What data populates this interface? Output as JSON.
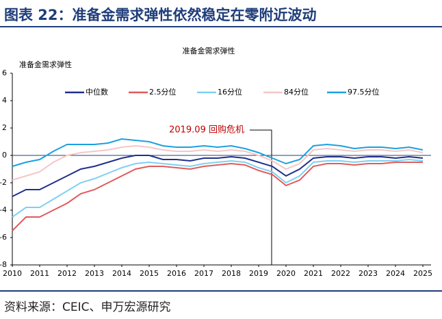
{
  "chart_data": {
    "type": "line",
    "header": "图表 22：准备金需求弹性依然稳定在零附近波动",
    "title": "准备金需求弹性",
    "ylabel": "准备金需求弹性",
    "annotation": "2019.09 回购危机",
    "source": "资料来源：CEIC、申万宏源研究",
    "x": [
      2010,
      2010.5,
      2011,
      2011.5,
      2012,
      2012.5,
      2013,
      2013.5,
      2014,
      2014.5,
      2015,
      2015.5,
      2016,
      2016.5,
      2017,
      2017.5,
      2018,
      2018.5,
      2019,
      2019.5,
      2020,
      2020.5,
      2021,
      2021.5,
      2022,
      2022.5,
      2023,
      2023.5,
      2024,
      2024.5,
      2025
    ],
    "xlim": [
      2010,
      2025.3
    ],
    "xticks": [
      2010,
      2011,
      2012,
      2013,
      2014,
      2015,
      2016,
      2017,
      2018,
      2019,
      2020,
      2021,
      2022,
      2023,
      2024,
      2025
    ],
    "ylim": [
      -8,
      6
    ],
    "yticks": [
      -8,
      -6,
      -4,
      -2,
      0,
      2,
      4,
      6
    ],
    "series": [
      {
        "name": "中位数",
        "color": "#1f2f8a",
        "values": [
          -3,
          -2.5,
          -2.5,
          -2,
          -1.5,
          -1,
          -0.8,
          -0.5,
          -0.2,
          0,
          0,
          -0.3,
          -0.3,
          -0.4,
          -0.2,
          -0.2,
          -0.1,
          -0.2,
          -0.5,
          -0.8,
          -1.5,
          -1,
          -0.2,
          -0.1,
          -0.1,
          -0.2,
          -0.1,
          -0.1,
          -0.2,
          -0.1,
          -0.2
        ]
      },
      {
        "name": "2.5分位",
        "color": "#e05a5a",
        "values": [
          -5.5,
          -4.5,
          -4.5,
          -4,
          -3.5,
          -2.8,
          -2.5,
          -2,
          -1.5,
          -1,
          -0.8,
          -0.8,
          -0.9,
          -1,
          -0.8,
          -0.7,
          -0.6,
          -0.7,
          -1.1,
          -1.4,
          -2.2,
          -1.8,
          -0.8,
          -0.6,
          -0.6,
          -0.7,
          -0.6,
          -0.6,
          -0.5,
          -0.5,
          -0.5
        ]
      },
      {
        "name": "16分位",
        "color": "#7fd0f0",
        "values": [
          -4.5,
          -3.8,
          -3.8,
          -3.2,
          -2.6,
          -2,
          -1.7,
          -1.3,
          -0.9,
          -0.6,
          -0.5,
          -0.6,
          -0.7,
          -0.8,
          -0.6,
          -0.5,
          -0.4,
          -0.5,
          -0.9,
          -1.2,
          -2,
          -1.5,
          -0.5,
          -0.4,
          -0.4,
          -0.5,
          -0.4,
          -0.4,
          -0.4,
          -0.3,
          -0.4
        ]
      },
      {
        "name": "84分位",
        "color": "#f5c6c6",
        "values": [
          -1.8,
          -1.5,
          -1.2,
          -0.5,
          0,
          0.2,
          0.3,
          0.4,
          0.6,
          0.7,
          0.6,
          0.4,
          0.3,
          0.3,
          0.4,
          0.3,
          0.4,
          0.3,
          0,
          -0.4,
          -1,
          -0.6,
          0.4,
          0.5,
          0.4,
          0.3,
          0.4,
          0.4,
          0.3,
          0.4,
          0.2
        ]
      },
      {
        "name": "97.5分位",
        "color": "#1aa0e0",
        "values": [
          -0.8,
          -0.5,
          -0.3,
          0.3,
          0.8,
          0.8,
          0.8,
          0.9,
          1.2,
          1.1,
          1,
          0.7,
          0.6,
          0.6,
          0.7,
          0.6,
          0.7,
          0.5,
          0.2,
          -0.2,
          -0.6,
          -0.3,
          0.7,
          0.8,
          0.7,
          0.5,
          0.6,
          0.6,
          0.5,
          0.6,
          0.4
        ]
      }
    ]
  }
}
